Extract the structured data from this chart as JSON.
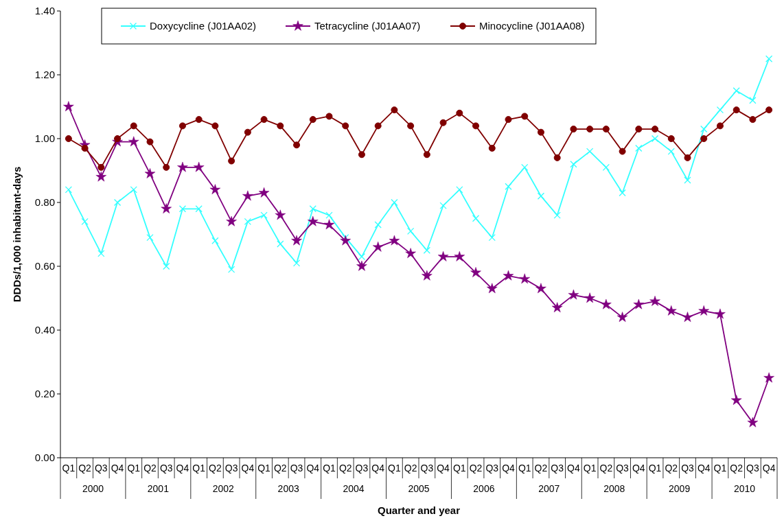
{
  "chart_data": {
    "type": "line",
    "xlabel": "Quarter and year",
    "ylabel": "DDDs/1,000 inhabitant-days",
    "categories": [
      "Q1",
      "Q2",
      "Q3",
      "Q4",
      "Q1",
      "Q2",
      "Q3",
      "Q4",
      "Q1",
      "Q2",
      "Q3",
      "Q4",
      "Q1",
      "Q2",
      "Q3",
      "Q4",
      "Q1",
      "Q2",
      "Q3",
      "Q4",
      "Q1",
      "Q2",
      "Q3",
      "Q4",
      "Q1",
      "Q2",
      "Q3",
      "Q4",
      "Q1",
      "Q2",
      "Q3",
      "Q4",
      "Q1",
      "Q2",
      "Q3",
      "Q4",
      "Q1",
      "Q2",
      "Q3",
      "Q4",
      "Q1",
      "Q2",
      "Q3",
      "Q4"
    ],
    "annotations": [
      "2000",
      "2001",
      "2002",
      "2003",
      "2004",
      "2005",
      "2006",
      "2007",
      "2008",
      "2009",
      "2010"
    ],
    "ylim": [
      0,
      1.4
    ],
    "yticks": [
      {
        "value": 0,
        "label": "0.00"
      },
      {
        "value": 0.2,
        "label": "0.20"
      },
      {
        "value": 0.4,
        "label": "0.40"
      },
      {
        "value": 0.6,
        "label": "0.60"
      },
      {
        "value": 0.8,
        "label": "0.80"
      },
      {
        "value": 1,
        "label": "1.00"
      },
      {
        "value": 1.2,
        "label": "1.20"
      },
      {
        "value": 1.4,
        "label": "1.40"
      }
    ],
    "grid": false,
    "legend": "top",
    "series": [
      {
        "name": "Doxycycline (J01AA02)",
        "color": "#33ffff",
        "marker": "cross",
        "values": [
          0.84,
          0.74,
          0.64,
          0.8,
          0.84,
          0.69,
          0.6,
          0.78,
          0.78,
          0.68,
          0.59,
          0.74,
          0.76,
          0.67,
          0.61,
          0.78,
          0.76,
          0.69,
          0.63,
          0.73,
          0.8,
          0.71,
          0.65,
          0.79,
          0.84,
          0.75,
          0.69,
          0.85,
          0.91,
          0.82,
          0.76,
          0.92,
          0.96,
          0.91,
          0.83,
          0.97,
          1.0,
          0.96,
          0.87,
          1.03,
          1.09,
          1.15,
          1.12,
          1.25
        ]
      },
      {
        "name": "Tetracycline (J01AA07)",
        "color": "#800080",
        "marker": "star",
        "values": [
          1.1,
          0.98,
          0.88,
          0.99,
          0.99,
          0.89,
          0.78,
          0.91,
          0.91,
          0.84,
          0.74,
          0.82,
          0.83,
          0.76,
          0.68,
          0.74,
          0.73,
          0.68,
          0.6,
          0.66,
          0.68,
          0.64,
          0.57,
          0.63,
          0.63,
          0.58,
          0.53,
          0.57,
          0.56,
          0.53,
          0.47,
          0.51,
          0.5,
          0.48,
          0.44,
          0.48,
          0.49,
          0.46,
          0.44,
          0.46,
          0.45,
          0.18,
          0.11,
          0.25
        ]
      },
      {
        "name": "Minocycline (J01AA08)",
        "color": "#800000",
        "marker": "circle",
        "values": [
          1.0,
          0.97,
          0.91,
          1.0,
          1.04,
          0.99,
          0.91,
          1.04,
          1.06,
          1.04,
          0.93,
          1.02,
          1.06,
          1.04,
          0.98,
          1.06,
          1.07,
          1.04,
          0.95,
          1.04,
          1.09,
          1.04,
          0.95,
          1.05,
          1.08,
          1.04,
          0.97,
          1.06,
          1.07,
          1.02,
          0.94,
          1.03,
          1.03,
          1.03,
          0.96,
          1.03,
          1.03,
          1.0,
          0.94,
          1.0,
          1.04,
          1.09,
          1.06,
          1.09
        ]
      }
    ]
  }
}
